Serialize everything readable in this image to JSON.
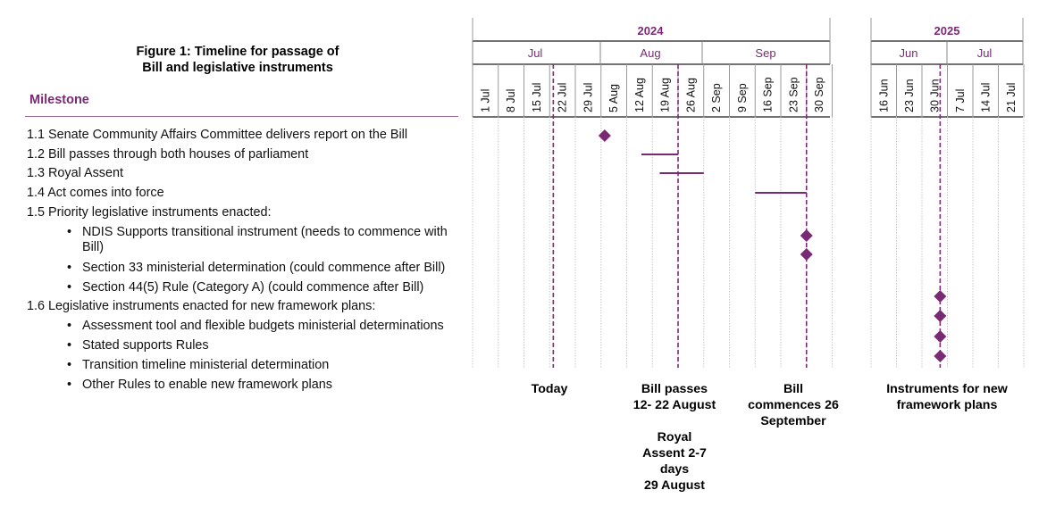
{
  "title": [
    "Figure 1: Timeline for passage of",
    "Bill and legislative instruments"
  ],
  "milestone_header": "Milestone",
  "rows": [
    {
      "label": "1.1 Senate Community Affairs Committee delivers report on the Bill",
      "indent": false
    },
    {
      "label": "1.2 Bill passes through both houses of parliament",
      "indent": false
    },
    {
      "label": "1.3 Royal Assent",
      "indent": false
    },
    {
      "label": "1.4 Act comes into force",
      "indent": false
    },
    {
      "label": "1.5 Priority legislative instruments enacted:",
      "indent": false
    },
    {
      "label": "NDIS Supports transitional instrument (needs to commence with",
      "label2": "Bill)",
      "indent": true
    },
    {
      "label": "Section 33 ministerial determination (could commence after Bill)",
      "indent": true
    },
    {
      "label": "Section 44(5) Rule (Category A) (could commence after Bill)",
      "indent": true
    },
    {
      "label": "1.6 Legislative instruments enacted for new framework plans:",
      "indent": false
    },
    {
      "label": "Assessment tool and flexible budgets ministerial determinations",
      "indent": true
    },
    {
      "label": "Stated supports Rules",
      "indent": true
    },
    {
      "label": "Transition timeline ministerial determination",
      "indent": true
    },
    {
      "label": "Other Rules to enable new framework plans",
      "indent": true
    }
  ],
  "years": [
    "2024",
    "2025"
  ],
  "months": [
    "Jul",
    "Aug",
    "Sep",
    "Jun",
    "Jul"
  ],
  "weeks_2024": [
    "1 Jul",
    "8 Jul",
    "15 Jul",
    "22 Jul",
    "29 Jul",
    "5 Aug",
    "12 Aug",
    "19 Aug",
    "26 Aug",
    "2 Sep",
    "9 Sep",
    "16 Sep",
    "23 Sep",
    "30 Sep"
  ],
  "weeks_2025": [
    "16 Jun",
    "23 Jun",
    "30 Jun",
    "7 Jul",
    "14 Jul",
    "21 Jul"
  ],
  "markers": [
    {
      "label": "Today",
      "date": "2024-07-19"
    },
    {
      "label": "Bill passes 12- 22 August",
      "date": "2024-08-22"
    },
    {
      "label": "Bill commences 26 September",
      "date": "2024-09-26"
    },
    {
      "label": "Instruments for new framework plans",
      "date": "2025-07-01"
    }
  ],
  "items": [
    {
      "row": 0,
      "type": "milestone",
      "date": "2024-08-02"
    },
    {
      "row": 1,
      "type": "bar",
      "start": "2024-08-12",
      "end": "2024-08-22"
    },
    {
      "row": 2,
      "type": "bar",
      "start": "2024-08-17",
      "end": "2024-08-29"
    },
    {
      "row": 3,
      "type": "bar",
      "start": "2024-09-12",
      "end": "2024-09-26"
    },
    {
      "row": 5,
      "type": "milestone",
      "date": "2024-09-26"
    },
    {
      "row": 6,
      "type": "milestone",
      "date": "2024-09-26"
    },
    {
      "row": 7,
      "type": "milestone",
      "date": "2025-07-01"
    },
    {
      "row": 9,
      "type": "milestone",
      "date": "2025-07-01"
    },
    {
      "row": 10,
      "type": "milestone",
      "date": "2025-07-01"
    },
    {
      "row": 11,
      "type": "milestone",
      "date": "2025-07-01"
    }
  ],
  "captions": {
    "today": [
      "Today"
    ],
    "bill_passes": [
      "Bill passes",
      "12- 22 August",
      "",
      "Royal",
      "Assent 2-7",
      "days",
      "29 August"
    ],
    "bill_commences": [
      "Bill",
      "commences 26",
      "September"
    ],
    "instruments": [
      "Instruments for new",
      "framework plans"
    ]
  },
  "colors": {
    "accent": "#7a2a74",
    "header_text": "#7a2a74",
    "grid": "#c8c8c8",
    "rule": "#444444"
  }
}
